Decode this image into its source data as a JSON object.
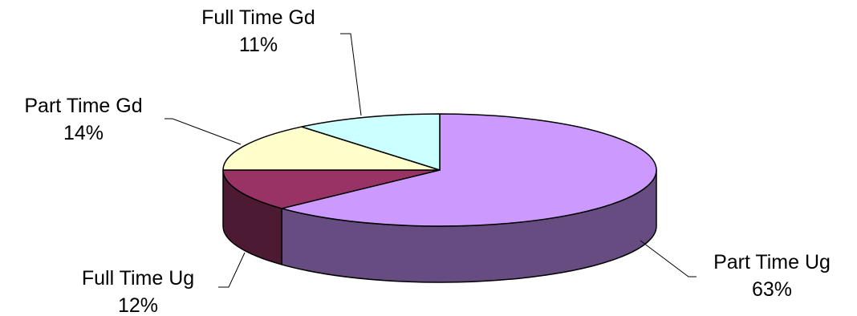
{
  "chart_data": {
    "type": "pie",
    "style": "3d",
    "categories": [
      "Part Time Ug",
      "Full Time Ug",
      "Part Time Gd",
      "Full Time Gd"
    ],
    "values": [
      63,
      12,
      14,
      11
    ],
    "labels": [
      {
        "name": "Part Time Ug",
        "pct": "63%"
      },
      {
        "name": "Full Time Ug",
        "pct": "12%"
      },
      {
        "name": "Part Time Gd",
        "pct": "14%"
      },
      {
        "name": "Full Time Gd",
        "pct": "11%"
      }
    ],
    "colors": [
      "#CC99FF",
      "#993366",
      "#FFFFCC",
      "#CCFFFF"
    ],
    "side_colors": [
      "#664C80",
      "#4D1A33",
      "#80805F",
      "#668080"
    ],
    "legend": "none",
    "title": ""
  }
}
